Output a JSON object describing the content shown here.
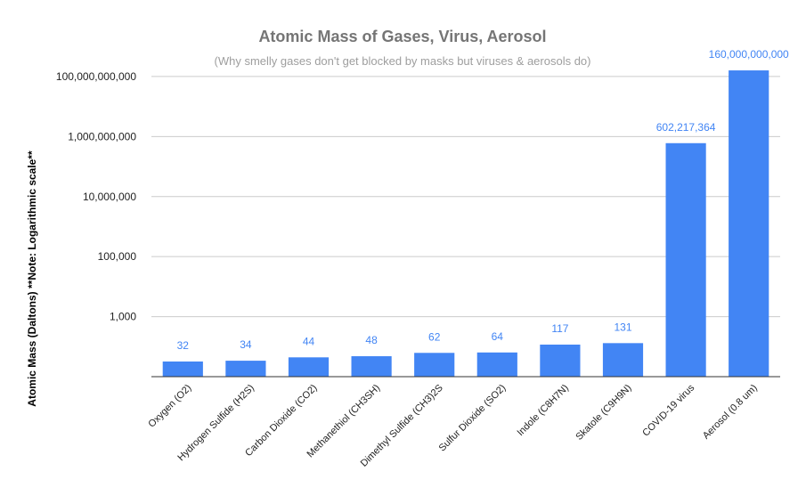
{
  "chart_data": {
    "type": "bar",
    "title": "Atomic Mass of Gases, Virus, Aerosol",
    "subtitle": "(Why smelly gases don't get blocked by masks but viruses & aerosols do)",
    "xlabel": "",
    "ylabel": "Atomic Mass (Daltons) **Note: Logarithmic scale**",
    "yscale": "log",
    "ylim": [
      10,
      150000000000
    ],
    "yticks": [
      1000,
      100000,
      10000000,
      1000000000,
      100000000000
    ],
    "ytick_labels": [
      "1,000",
      "100,000",
      "10,000,000",
      "1,000,000,000",
      "100,000,000,000"
    ],
    "grid": true,
    "legend": "none",
    "bar_color": "#4285f4",
    "categories": [
      "Oxygen (O2)",
      "Hydrogen Sulfide (H2S)",
      "Carbon Dioxide (CO2)",
      "Methanethiol (CH3SH)",
      "Dimethyl Sulfide (CH3)2S",
      "Sulfur Dioxide (SO2)",
      "Indole (C8H7N)",
      "Skatole (C9H9N)",
      "COVID-19 virus",
      "Aerosol (0.8 um)"
    ],
    "values": [
      32,
      34,
      44,
      48,
      62,
      64,
      117,
      131,
      602217364,
      160000000000
    ],
    "value_labels": [
      "32",
      "34",
      "44",
      "48",
      "62",
      "64",
      "117",
      "131",
      "602,217,364",
      "160,000,000,000"
    ]
  }
}
